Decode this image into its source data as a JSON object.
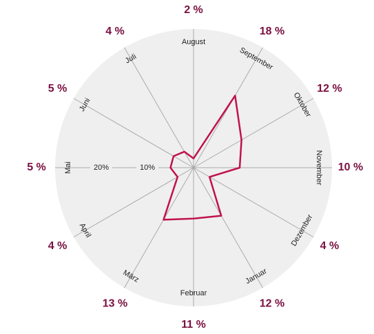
{
  "chart_data": {
    "type": "radar",
    "categories": [
      "August",
      "September",
      "Oktober",
      "November",
      "Dezember",
      "Januar",
      "Februar",
      "März",
      "April",
      "Mai",
      "Juni",
      "Juli"
    ],
    "values": [
      2,
      18,
      12,
      10,
      4,
      12,
      11,
      13,
      4,
      5,
      5,
      4
    ],
    "value_labels": [
      "2 %",
      "18 %",
      "12 %",
      "10 %",
      "4 %",
      "12 %",
      "11 %",
      "13 %",
      "4 %",
      "5 %",
      "5 %",
      "4 %"
    ],
    "color": "#c0124a",
    "ylim": [
      0,
      30
    ],
    "yticks": [
      {
        "value": 10,
        "label": "10%"
      },
      {
        "value": 20,
        "label": "20%"
      }
    ]
  }
}
